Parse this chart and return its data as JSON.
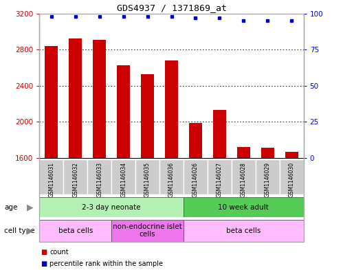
{
  "title": "GDS4937 / 1371869_at",
  "samples": [
    "GSM1146031",
    "GSM1146032",
    "GSM1146033",
    "GSM1146034",
    "GSM1146035",
    "GSM1146036",
    "GSM1146026",
    "GSM1146027",
    "GSM1146028",
    "GSM1146029",
    "GSM1146030"
  ],
  "counts": [
    2840,
    2920,
    2910,
    2630,
    2530,
    2680,
    1990,
    2130,
    1720,
    1710,
    1670
  ],
  "percentile_ranks": [
    98,
    98,
    98,
    98,
    98,
    98,
    97,
    97,
    95,
    95,
    95
  ],
  "ylim_left": [
    1600,
    3200
  ],
  "ylim_right": [
    0,
    100
  ],
  "yticks_left": [
    1600,
    2000,
    2400,
    2800,
    3200
  ],
  "yticks_right": [
    0,
    25,
    50,
    75,
    100
  ],
  "bar_color": "#cc0000",
  "scatter_color": "#0000cc",
  "age_groups": [
    {
      "label": "2-3 day neonate",
      "start": 0,
      "end": 6,
      "color": "#b3f0b3"
    },
    {
      "label": "10 week adult",
      "start": 6,
      "end": 11,
      "color": "#55cc55"
    }
  ],
  "cell_type_groups": [
    {
      "label": "beta cells",
      "start": 0,
      "end": 3,
      "color": "#ffbbff"
    },
    {
      "label": "non-endocrine islet\ncells",
      "start": 3,
      "end": 6,
      "color": "#ee77ee"
    },
    {
      "label": "beta cells",
      "start": 6,
      "end": 11,
      "color": "#ffbbff"
    }
  ],
  "legend_count_label": "count",
  "legend_percentile_label": "percentile rank within the sample",
  "age_label": "age",
  "cell_type_label": "cell type",
  "bg_color": "#ffffff",
  "tick_label_color_left": "#cc0000",
  "tick_label_color_right": "#0000cc",
  "grid_color": "#000000",
  "sample_bg_color": "#cccccc",
  "border_color": "#aaaaaa"
}
